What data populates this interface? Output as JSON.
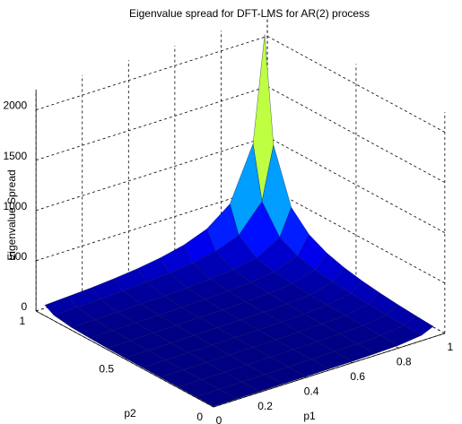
{
  "chart_data": {
    "type": "surface",
    "title": "Eigenvalue spread for DFT-LMS for AR(2) process",
    "xlabel": "p1",
    "ylabel": "p2",
    "zlabel": "Eigenvalue Spread",
    "x": [
      0,
      0.1,
      0.2,
      0.3,
      0.4,
      0.5,
      0.6,
      0.7,
      0.8,
      0.9,
      0.95
    ],
    "y": [
      0,
      0.1,
      0.2,
      0.3,
      0.4,
      0.5,
      0.6,
      0.7,
      0.8,
      0.9,
      0.95
    ],
    "z": [
      [
        6,
        7,
        8,
        9,
        10,
        12,
        14,
        19,
        27,
        54,
        106
      ],
      [
        7,
        7,
        8,
        9,
        11,
        13,
        16,
        20,
        30,
        59,
        118
      ],
      [
        8,
        8,
        9,
        10,
        12,
        14,
        17,
        23,
        34,
        67,
        132
      ],
      [
        9,
        9,
        10,
        12,
        14,
        16,
        20,
        26,
        39,
        76,
        151
      ],
      [
        10,
        11,
        12,
        14,
        16,
        19,
        23,
        30,
        45,
        89,
        176
      ],
      [
        12,
        13,
        14,
        16,
        19,
        22,
        27,
        36,
        54,
        106,
        211
      ],
      [
        14,
        16,
        17,
        20,
        23,
        27,
        34,
        45,
        67,
        132,
        264
      ],
      [
        19,
        20,
        23,
        26,
        30,
        36,
        45,
        59,
        89,
        176,
        351
      ],
      [
        27,
        30,
        34,
        39,
        45,
        54,
        67,
        89,
        132,
        264,
        526
      ],
      [
        54,
        59,
        67,
        76,
        89,
        106,
        132,
        176,
        264,
        526,
        1051
      ],
      [
        106,
        118,
        132,
        151,
        176,
        211,
        264,
        351,
        526,
        1051,
        2101
      ]
    ],
    "xlim": [
      0,
      1
    ],
    "xticks": [
      0,
      0.2,
      0.4,
      0.6,
      0.8,
      1
    ],
    "ylim": [
      0,
      1
    ],
    "yticks": [
      0,
      0.5,
      1
    ],
    "zlim": [
      0,
      2200
    ],
    "zticks": [
      0,
      500,
      1000,
      1500,
      2000
    ],
    "grid": true,
    "colormap": "jet"
  }
}
